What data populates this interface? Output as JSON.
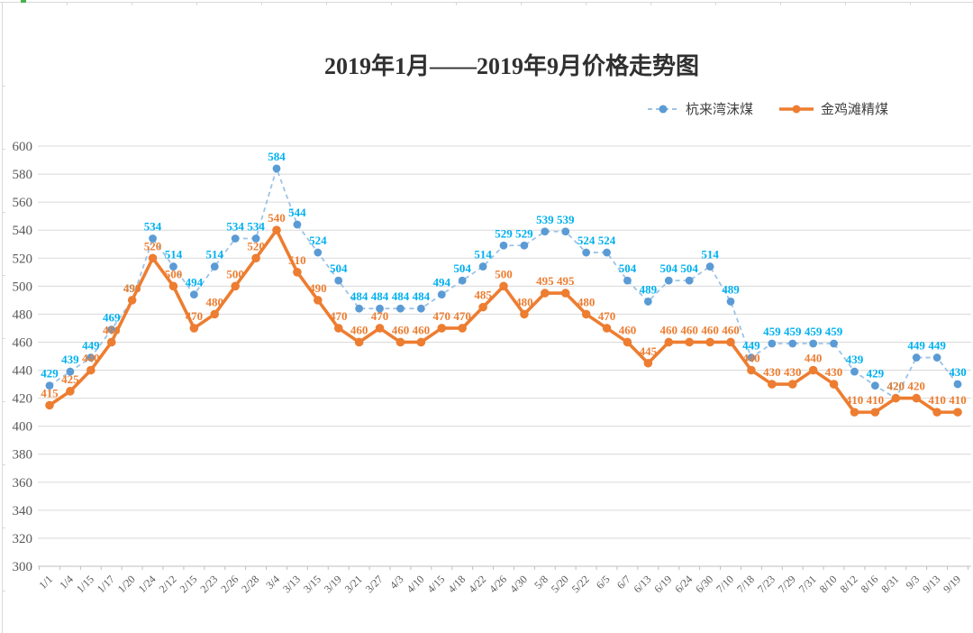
{
  "title_bar": {},
  "chart_data": {
    "type": "line",
    "title": "2019年1月——2019年9月价格走势图",
    "categories": [
      "1/1",
      "1/4",
      "1/15",
      "1/17",
      "1/20",
      "1/24",
      "2/12",
      "2/15",
      "2/23",
      "2/26",
      "2/28",
      "3/4",
      "3/13",
      "3/15",
      "3/19",
      "3/21",
      "3/27",
      "4/3",
      "4/10",
      "4/15",
      "4/18",
      "4/22",
      "4/26",
      "4/30",
      "5/8",
      "5/20",
      "5/22",
      "6/5",
      "6/7",
      "6/13",
      "6/19",
      "6/24",
      "6/30",
      "7/10",
      "7/18",
      "7/23",
      "7/29",
      "7/31",
      "8/10",
      "8/12",
      "8/16",
      "8/31",
      "9/3",
      "9/13",
      "9/19"
    ],
    "series": [
      {
        "name": "杭来湾沫煤",
        "style": "dashed",
        "marker_color": "#5B9BD5",
        "line_color": "#9DC3E6",
        "label_color": "#00B0F0",
        "values": [
          429,
          439,
          449,
          469,
          490,
          534,
          514,
          494,
          514,
          534,
          534,
          584,
          544,
          524,
          504,
          484,
          484,
          484,
          484,
          494,
          504,
          514,
          529,
          529,
          539,
          539,
          524,
          524,
          504,
          489,
          504,
          504,
          514,
          489,
          449,
          459,
          459,
          459,
          459,
          439,
          429,
          420,
          449,
          449,
          430
        ]
      },
      {
        "name": "金鸡滩精煤",
        "style": "solid",
        "marker_color": "#ED7D31",
        "line_color": "#ED7D31",
        "label_color": "#ED7D31",
        "values": [
          415,
          425,
          440,
          460,
          490,
          520,
          500,
          470,
          480,
          500,
          520,
          540,
          510,
          490,
          470,
          460,
          470,
          460,
          460,
          470,
          470,
          485,
          500,
          480,
          495,
          495,
          480,
          470,
          460,
          445,
          460,
          460,
          460,
          460,
          440,
          430,
          430,
          440,
          430,
          410,
          410,
          420,
          420,
          410,
          410
        ]
      }
    ],
    "ylim": [
      300,
      600
    ],
    "yticks": [
      600,
      580,
      560,
      540,
      520,
      500,
      480,
      460,
      440,
      420,
      400,
      380,
      360,
      340,
      320,
      300
    ],
    "grid": true,
    "data_labels": true,
    "legend_position": "top-right",
    "axis_colors": {
      "grid": "#d9d9d9",
      "axis_line": "#bfbfbf",
      "tick_label": "#595959"
    }
  }
}
